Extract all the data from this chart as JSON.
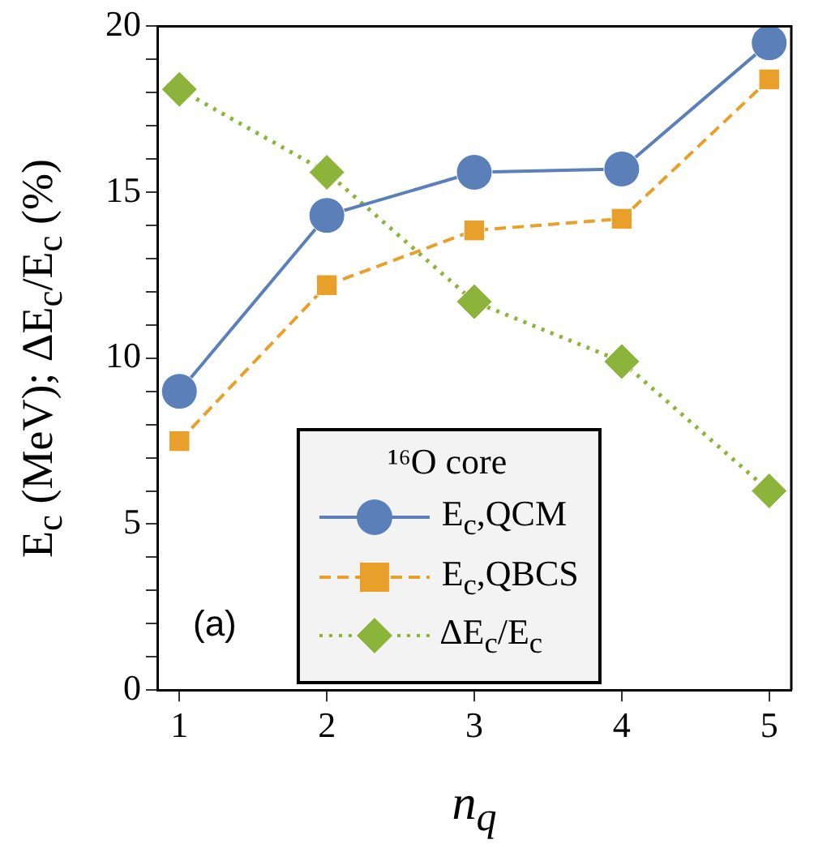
{
  "chart_data": {
    "type": "line",
    "xlabel": "n$_{q}$",
    "ylabel": "E$_{c}$ (MeV); ΔE$_{c}$/E$_{c}$ (%)",
    "legend_title": "¹⁶O core",
    "legend": "bottom",
    "annotations": [
      "(a)"
    ],
    "x": [
      1,
      2,
      3,
      4,
      5
    ],
    "xlim": [
      0.85,
      5.15
    ],
    "xticks": [
      1,
      2,
      3,
      4,
      5
    ],
    "ylim": [
      0,
      20
    ],
    "yticks": [
      0,
      {
        "value": 1,
        "label": null
      },
      {
        "value": 2,
        "label": null
      },
      {
        "value": 3,
        "label": null
      },
      {
        "value": 4,
        "label": null
      },
      5,
      {
        "value": 6,
        "label": null
      },
      {
        "value": 7,
        "label": null
      },
      {
        "value": 8,
        "label": null
      },
      {
        "value": 9,
        "label": null
      },
      10,
      {
        "value": 11,
        "label": null
      },
      {
        "value": 12,
        "label": null
      },
      {
        "value": 13,
        "label": null
      },
      {
        "value": 14,
        "label": null
      },
      15,
      {
        "value": 16,
        "label": null
      },
      {
        "value": 17,
        "label": null
      },
      {
        "value": 18,
        "label": null
      },
      {
        "value": 19,
        "label": null
      },
      20
    ],
    "grid": false,
    "series": [
      {
        "name": "E$_{c}$,QCM",
        "color": "#5b80b9",
        "marker": "circle",
        "line_style": "solid",
        "values": [
          9.0,
          14.3,
          15.6,
          15.7,
          19.5
        ]
      },
      {
        "name": "E$_{c}$,QBCS",
        "color": "#e8a02a",
        "marker": "square",
        "line_style": "dashed",
        "values": [
          7.5,
          12.2,
          13.85,
          14.2,
          18.4
        ]
      },
      {
        "name": "ΔE$_{c}$/E$_{c}$",
        "color": "#8db43a",
        "marker": "diamond",
        "line_style": "dotted",
        "values": [
          18.1,
          15.6,
          11.7,
          9.9,
          6.0
        ]
      }
    ]
  }
}
